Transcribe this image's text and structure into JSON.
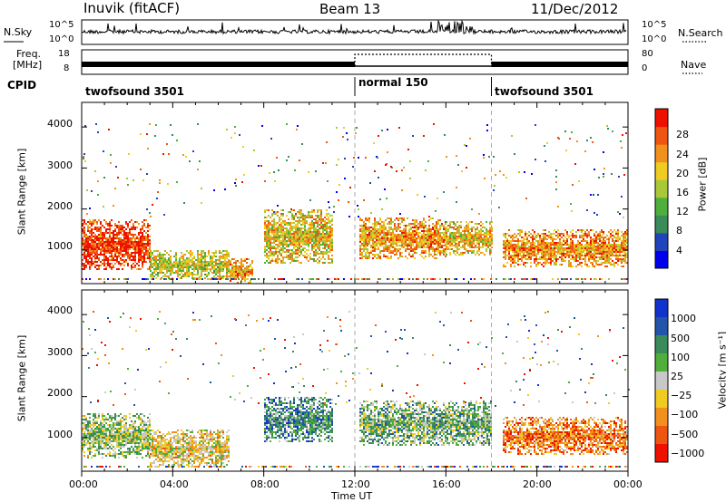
{
  "header": {
    "station": "Inuvik (fitACF)",
    "beam": "Beam 13",
    "date": "11/Dec/2012"
  },
  "top_panels": {
    "nsky_label": "N.Sky",
    "nsearch_label": "N.Search",
    "nsky_ticks": [
      "10^5",
      "10^0"
    ],
    "nsearch_ticks": [
      "10^5",
      "10^0"
    ],
    "freq_label_line1": "Freq.",
    "freq_label_line2": "[MHz]",
    "freq_ticks": [
      "18",
      "8"
    ],
    "nave_label": "Nave",
    "nave_ticks": [
      "80",
      "0"
    ],
    "cpid_label": "CPID",
    "cpid_segments": [
      {
        "name": "twofsound 3501",
        "start": 0,
        "end": 12
      },
      {
        "name": "normal 150",
        "start": 12,
        "end": 18
      },
      {
        "name": "twofsound 3501",
        "start": 18,
        "end": 24
      }
    ]
  },
  "chart_data": [
    {
      "type": "heatmap",
      "panel": "power",
      "ylabel": "Slant Range [km]",
      "xlabel": "Time UT",
      "x_ticks": [
        "00:00",
        "04:00",
        "08:00",
        "12:00",
        "16:00",
        "20:00",
        "00:00"
      ],
      "y_ticks": [
        1000,
        2000,
        3000,
        4000
      ],
      "xlim": [
        0,
        24
      ],
      "ylim": [
        180,
        4600
      ],
      "colorbar": {
        "label": "Power [dB]",
        "ticks": [
          4,
          8,
          12,
          16,
          20,
          24,
          28
        ],
        "range": [
          0,
          30
        ],
        "colors": [
          "#0000ee",
          "#2244bb",
          "#3b8a5a",
          "#4fae3c",
          "#a8c83a",
          "#eecc22",
          "#f2901e",
          "#ee5511",
          "#ee1100"
        ]
      },
      "regions": [
        {
          "t": [
            0,
            3
          ],
          "r": [
            550,
            1750
          ],
          "level": 0.88
        },
        {
          "t": [
            3,
            6.5
          ],
          "r": [
            300,
            1000
          ],
          "level": 0.55
        },
        {
          "t": [
            6.5,
            7.5
          ],
          "r": [
            200,
            800
          ],
          "level": 0.72
        },
        {
          "t": [
            8,
            11
          ],
          "r": [
            700,
            2000
          ],
          "level": 0.6
        },
        {
          "t": [
            12.2,
            16
          ],
          "r": [
            800,
            1800
          ],
          "level": 0.7
        },
        {
          "t": [
            16,
            18
          ],
          "r": [
            900,
            1700
          ],
          "level": 0.62
        },
        {
          "t": [
            18.5,
            24
          ],
          "r": [
            600,
            1500
          ],
          "level": 0.72
        }
      ]
    },
    {
      "type": "heatmap",
      "panel": "velocity",
      "ylabel": "Slant Range [km]",
      "xlabel": "Time UT",
      "x_ticks": [
        "00:00",
        "04:00",
        "08:00",
        "12:00",
        "16:00",
        "20:00",
        "00:00"
      ],
      "y_ticks": [
        1000,
        2000,
        3000,
        4000
      ],
      "xlim": [
        0,
        24
      ],
      "ylim": [
        180,
        4600
      ],
      "colorbar": {
        "label": "Velocity [m s⁻¹]",
        "ticks": [
          "1000",
          "500",
          "100",
          "25",
          "−25",
          "−100",
          "−500",
          "−1000"
        ],
        "colors": [
          "#ee1100",
          "#ee5511",
          "#f2901e",
          "#eecc22",
          "#c8c8c8",
          "#4fae3c",
          "#3b8a5a",
          "#2255aa",
          "#1133cc"
        ]
      },
      "regions": [
        {
          "t": [
            0,
            3
          ],
          "r": [
            500,
            1600
          ],
          "level": 0.55
        },
        {
          "t": [
            3,
            6.5
          ],
          "r": [
            300,
            1200
          ],
          "level": 0.42
        },
        {
          "t": [
            8,
            11
          ],
          "r": [
            900,
            2000
          ],
          "level": 0.7
        },
        {
          "t": [
            12.2,
            18
          ],
          "r": [
            800,
            1900
          ],
          "level": 0.6
        },
        {
          "t": [
            18.5,
            24
          ],
          "r": [
            600,
            1500
          ],
          "level": 0.25
        }
      ]
    }
  ]
}
